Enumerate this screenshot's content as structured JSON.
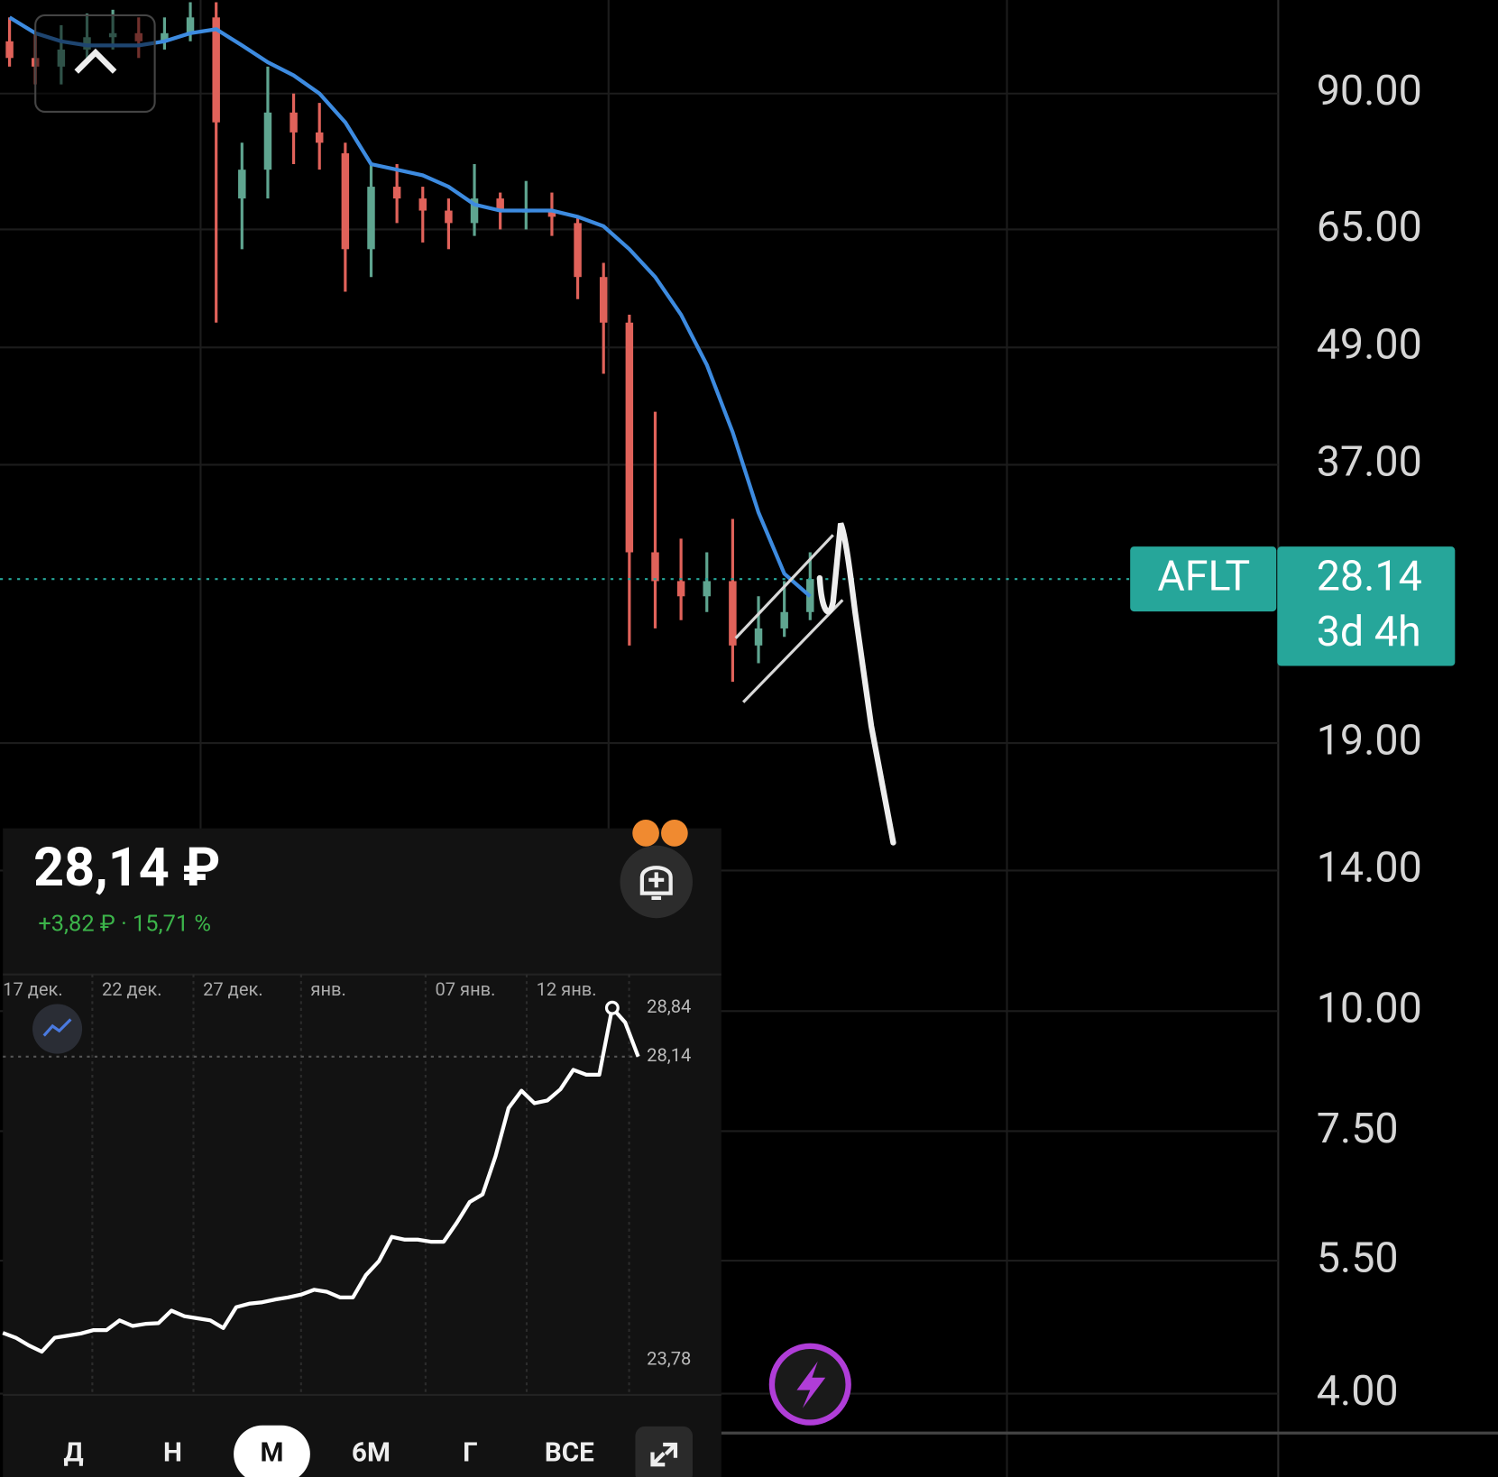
{
  "main_chart": {
    "type": "candlestick",
    "ticker": "AFLT",
    "last_price": 28.14,
    "countdown": "3d 4h",
    "log_scale": true,
    "ylim": [
      3.64,
      112.6
    ],
    "yticks": [
      {
        "value": 90,
        "label": "90.00"
      },
      {
        "value": 65,
        "label": "65.00"
      },
      {
        "value": 49,
        "label": "49.00"
      },
      {
        "value": 37,
        "label": "37.00"
      },
      {
        "value": 19,
        "label": "19.00"
      },
      {
        "value": 14,
        "label": "14.00"
      },
      {
        "value": 10,
        "label": "10.00"
      },
      {
        "value": 7.5,
        "label": "7.50"
      },
      {
        "value": 5.5,
        "label": "5.50"
      },
      {
        "value": 4,
        "label": "4.00"
      }
    ],
    "grid": true,
    "up_color": "#5fa590",
    "down_color": "#e0625a",
    "badge_color": "#26a69a",
    "candles": [
      {
        "open": 102,
        "high": 108,
        "low": 96,
        "close": 98
      },
      {
        "open": 98,
        "high": 104,
        "low": 92,
        "close": 96
      },
      {
        "open": 96,
        "high": 106,
        "low": 92,
        "close": 100
      },
      {
        "open": 100,
        "high": 109,
        "low": 98,
        "close": 103
      },
      {
        "open": 103,
        "high": 110,
        "low": 100,
        "close": 104
      },
      {
        "open": 104,
        "high": 108,
        "low": 98,
        "close": 102
      },
      {
        "open": 102,
        "high": 108,
        "low": 100,
        "close": 104
      },
      {
        "open": 104,
        "high": 112,
        "low": 102,
        "close": 108
      },
      {
        "open": 108,
        "high": 112,
        "low": 52,
        "close": 84
      },
      {
        "open": 70,
        "high": 80,
        "low": 62,
        "close": 75
      },
      {
        "open": 75,
        "high": 96,
        "low": 70,
        "close": 86
      },
      {
        "open": 86,
        "high": 90,
        "low": 76,
        "close": 82
      },
      {
        "open": 82,
        "high": 88,
        "low": 75,
        "close": 80
      },
      {
        "open": 78,
        "high": 80,
        "low": 56,
        "close": 62
      },
      {
        "open": 62,
        "high": 76,
        "low": 58,
        "close": 72
      },
      {
        "open": 72,
        "high": 76,
        "low": 66,
        "close": 70
      },
      {
        "open": 70,
        "high": 72,
        "low": 63,
        "close": 68
      },
      {
        "open": 68,
        "high": 70,
        "low": 62,
        "close": 66
      },
      {
        "open": 66,
        "high": 76,
        "low": 64,
        "close": 70
      },
      {
        "open": 70,
        "high": 71,
        "low": 65,
        "close": 68
      },
      {
        "open": 68,
        "high": 73,
        "low": 65,
        "close": 68
      },
      {
        "open": 68,
        "high": 71,
        "low": 64,
        "close": 67
      },
      {
        "open": 66,
        "high": 67,
        "low": 55,
        "close": 58
      },
      {
        "open": 58,
        "high": 60,
        "low": 46,
        "close": 52
      },
      {
        "open": 52,
        "high": 53,
        "low": 24,
        "close": 30
      },
      {
        "open": 30,
        "high": 42,
        "low": 25,
        "close": 28
      },
      {
        "open": 28,
        "high": 31,
        "low": 25.5,
        "close": 27
      },
      {
        "open": 27,
        "high": 30,
        "low": 26,
        "close": 28
      },
      {
        "open": 28,
        "high": 32.5,
        "low": 22,
        "close": 24
      },
      {
        "open": 24,
        "high": 27,
        "low": 23,
        "close": 25
      },
      {
        "open": 25,
        "high": 28,
        "low": 24.5,
        "close": 26
      },
      {
        "open": 26,
        "high": 30,
        "low": 25.5,
        "close": 28.14
      }
    ],
    "moving_average": {
      "color": "#3d8be0",
      "values": [
        108,
        104,
        102,
        101,
        101,
        101,
        102,
        104,
        105,
        101,
        97,
        94,
        90,
        84,
        76,
        75,
        74,
        72,
        69,
        68,
        68,
        68,
        67,
        65.5,
        62,
        58,
        53,
        47,
        40,
        33,
        28.5,
        27
      ]
    }
  },
  "widget": {
    "price": "28,14 ₽",
    "change": "+3,82 ₽ · 15,71 %",
    "chart": {
      "type": "line",
      "color": "#ffffff",
      "values": [
        24.17,
        24.1,
        23.99,
        23.9,
        24.1,
        24.13,
        24.16,
        24.21,
        24.21,
        24.35,
        24.27,
        24.3,
        24.31,
        24.49,
        24.41,
        24.38,
        24.35,
        24.24,
        24.54,
        24.59,
        24.61,
        24.65,
        24.68,
        24.72,
        24.79,
        24.76,
        24.68,
        24.68,
        25.0,
        25.2,
        25.55,
        25.51,
        25.51,
        25.48,
        25.48,
        25.75,
        26.05,
        26.16,
        26.71,
        27.4,
        27.65,
        27.47,
        27.51,
        27.67,
        27.95,
        27.88,
        27.88,
        28.84,
        28.63,
        28.14
      ],
      "xlim": [
        0,
        49
      ],
      "xticks": [
        {
          "value": -0.8,
          "label": "17 дек."
        },
        {
          "value": 6.9,
          "label": "22 дек."
        },
        {
          "value": 14.7,
          "label": "27 дек."
        },
        {
          "value": 23,
          "label": "янв."
        },
        {
          "value": 32.6,
          "label": "07 янв."
        },
        {
          "value": 40.4,
          "label": "12 янв."
        },
        {
          "value": 48.3,
          "label": null
        }
      ],
      "ylim": [
        23.28,
        29.32
      ],
      "yticks": [
        {
          "value": 28.84,
          "label": "28,84"
        },
        {
          "value": 28.14,
          "label": "28,14"
        },
        {
          "value": 23.78,
          "label": "23,78"
        }
      ]
    },
    "periods": [
      "Д",
      "Н",
      "М",
      "6М",
      "Г",
      "ВСЕ"
    ],
    "selected_period": 2
  }
}
